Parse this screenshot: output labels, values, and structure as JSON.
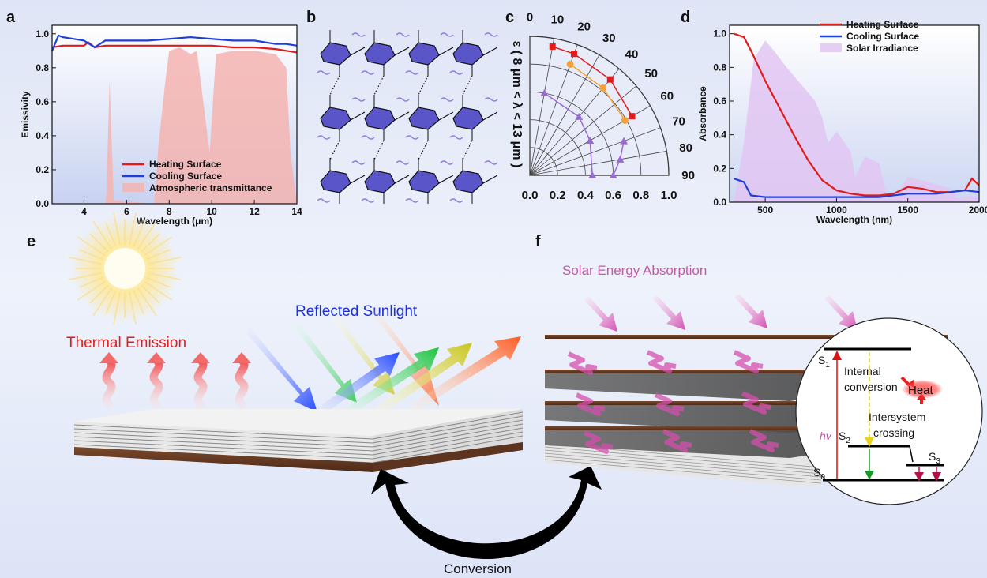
{
  "panels": {
    "a": "a",
    "b": "b",
    "c": "c",
    "d": "d",
    "e": "e",
    "f": "f"
  },
  "chart_data": [
    {
      "type": "line",
      "panel": "a",
      "xlabel": "Wavelength (μm)",
      "ylabel": "Emissivity",
      "xlim": [
        2.5,
        14
      ],
      "ylim": [
        0,
        1.05
      ],
      "xticks": [
        "4",
        "6",
        "8",
        "10",
        "12",
        "14"
      ],
      "yticks": [
        "0.0",
        "0.2",
        "0.4",
        "0.6",
        "0.8",
        "1.0"
      ],
      "legend": "bottom-right",
      "series": [
        {
          "name": "Heating Surface",
          "color": "#e01b1b",
          "x": [
            2.5,
            3,
            3.5,
            4,
            4.2,
            4.5,
            5,
            6,
            7,
            8,
            9,
            10,
            11,
            12,
            13,
            13.5,
            14
          ],
          "y": [
            0.92,
            0.93,
            0.93,
            0.93,
            0.95,
            0.92,
            0.93,
            0.93,
            0.93,
            0.93,
            0.93,
            0.93,
            0.92,
            0.92,
            0.91,
            0.9,
            0.89
          ]
        },
        {
          "name": "Cooling Surface",
          "color": "#1c3fd8",
          "x": [
            2.5,
            2.8,
            3,
            3.5,
            4,
            4.5,
            5,
            6,
            7,
            8,
            9,
            10,
            11,
            12,
            13,
            13.5,
            14
          ],
          "y": [
            0.9,
            0.99,
            0.98,
            0.97,
            0.96,
            0.92,
            0.96,
            0.96,
            0.96,
            0.97,
            0.98,
            0.97,
            0.96,
            0.96,
            0.94,
            0.94,
            0.93
          ]
        },
        {
          "name": "Atmospheric transmittance",
          "color": "#f4b4b0",
          "type": "area",
          "x": [
            2.5,
            5,
            5.05,
            5.2,
            5.4,
            7.3,
            7.5,
            7.8,
            8,
            8.5,
            9,
            9.3,
            9.6,
            9.9,
            10.2,
            11,
            12,
            13,
            13.5,
            13.7,
            14
          ],
          "y": [
            0,
            0,
            0.05,
            0.72,
            0.02,
            0,
            0.35,
            0.7,
            0.9,
            0.92,
            0.88,
            0.9,
            0.6,
            0.3,
            0.88,
            0.9,
            0.9,
            0.88,
            0.8,
            0.3,
            0
          ]
        }
      ]
    },
    {
      "type": "scatter",
      "panel": "c",
      "subtype": "polar",
      "ylabel": "ε ( 8 μm < λ < 13 μm )",
      "radial_ticks": [
        "0.0",
        "0.2",
        "0.4",
        "0.6",
        "0.8",
        "1.0"
      ],
      "angle_ticks": [
        "0",
        "10",
        "20",
        "30",
        "40",
        "50",
        "60",
        "70",
        "80",
        "90"
      ],
      "series": [
        {
          "color": "#e01b1b",
          "angles": [
            10,
            20,
            40,
            60
          ],
          "values": [
            0.94,
            0.93,
            0.9,
            0.85
          ]
        },
        {
          "color": "#f1a23a",
          "angles": [
            20,
            40,
            60
          ],
          "values": [
            0.85,
            0.82,
            0.79
          ]
        },
        {
          "color": "#9b6ad0",
          "angles": [
            10,
            40,
            60,
            90
          ],
          "values": [
            0.6,
            0.55,
            0.5,
            0.45
          ]
        },
        {
          "color": "#9b6ad0",
          "angles": [
            70,
            80,
            90
          ],
          "values": [
            0.72,
            0.66,
            0.6
          ]
        }
      ]
    },
    {
      "type": "line",
      "panel": "d",
      "xlabel": "Wavelength (nm)",
      "ylabel": "Absorbance",
      "xlim": [
        250,
        2000
      ],
      "ylim": [
        0,
        1.05
      ],
      "xticks": [
        "500",
        "1000",
        "1500",
        "2000"
      ],
      "yticks": [
        "0.0",
        "0.2",
        "0.4",
        "0.6",
        "0.8",
        "1.0"
      ],
      "legend": "top-right",
      "series": [
        {
          "name": "Heating Surface",
          "color": "#e01b1b",
          "x": [
            280,
            350,
            400,
            500,
            600,
            700,
            800,
            900,
            1000,
            1100,
            1200,
            1300,
            1400,
            1500,
            1600,
            1700,
            1800,
            1900,
            1950,
            2000
          ],
          "y": [
            1.0,
            0.98,
            0.9,
            0.72,
            0.56,
            0.4,
            0.25,
            0.13,
            0.07,
            0.05,
            0.04,
            0.04,
            0.05,
            0.09,
            0.08,
            0.06,
            0.06,
            0.07,
            0.14,
            0.1
          ]
        },
        {
          "name": "Cooling Surface",
          "color": "#1c3fd8",
          "x": [
            280,
            350,
            400,
            500,
            700,
            1000,
            1300,
            1400,
            1500,
            1700,
            1900,
            2000
          ],
          "y": [
            0.14,
            0.12,
            0.04,
            0.03,
            0.03,
            0.03,
            0.03,
            0.04,
            0.05,
            0.05,
            0.07,
            0.06
          ]
        },
        {
          "name": "Solar Irradiance",
          "color": "#e2c6f2",
          "type": "area",
          "x": [
            280,
            350,
            420,
            500,
            560,
            650,
            750,
            850,
            900,
            940,
            1000,
            1100,
            1130,
            1200,
            1300,
            1350,
            1400,
            1500,
            1600,
            1800,
            1850,
            1950,
            2000
          ],
          "y": [
            0,
            0.35,
            0.85,
            0.96,
            0.9,
            0.8,
            0.7,
            0.6,
            0.5,
            0.35,
            0.42,
            0.3,
            0.15,
            0.27,
            0.23,
            0.05,
            0.02,
            0.15,
            0.13,
            0.08,
            0.02,
            0.04,
            0.03
          ]
        }
      ]
    }
  ],
  "scene_e": {
    "thermal_label": "Thermal Emission",
    "reflected_label": "Reflected Sunlight"
  },
  "scene_f": {
    "solar_label": "Solar Energy Absorption",
    "internal_conversion": "Internal conversion",
    "intersystem_crossing_1": "Intersystem",
    "intersystem_crossing_2": "crossing",
    "heat": "Heat",
    "hv": "hv",
    "s0": "S",
    "s1": "S",
    "s2": "S",
    "s3": "S",
    "sub0": "0",
    "sub1": "1",
    "sub2": "2",
    "sub3": "3"
  },
  "conversion_label": "Conversion"
}
